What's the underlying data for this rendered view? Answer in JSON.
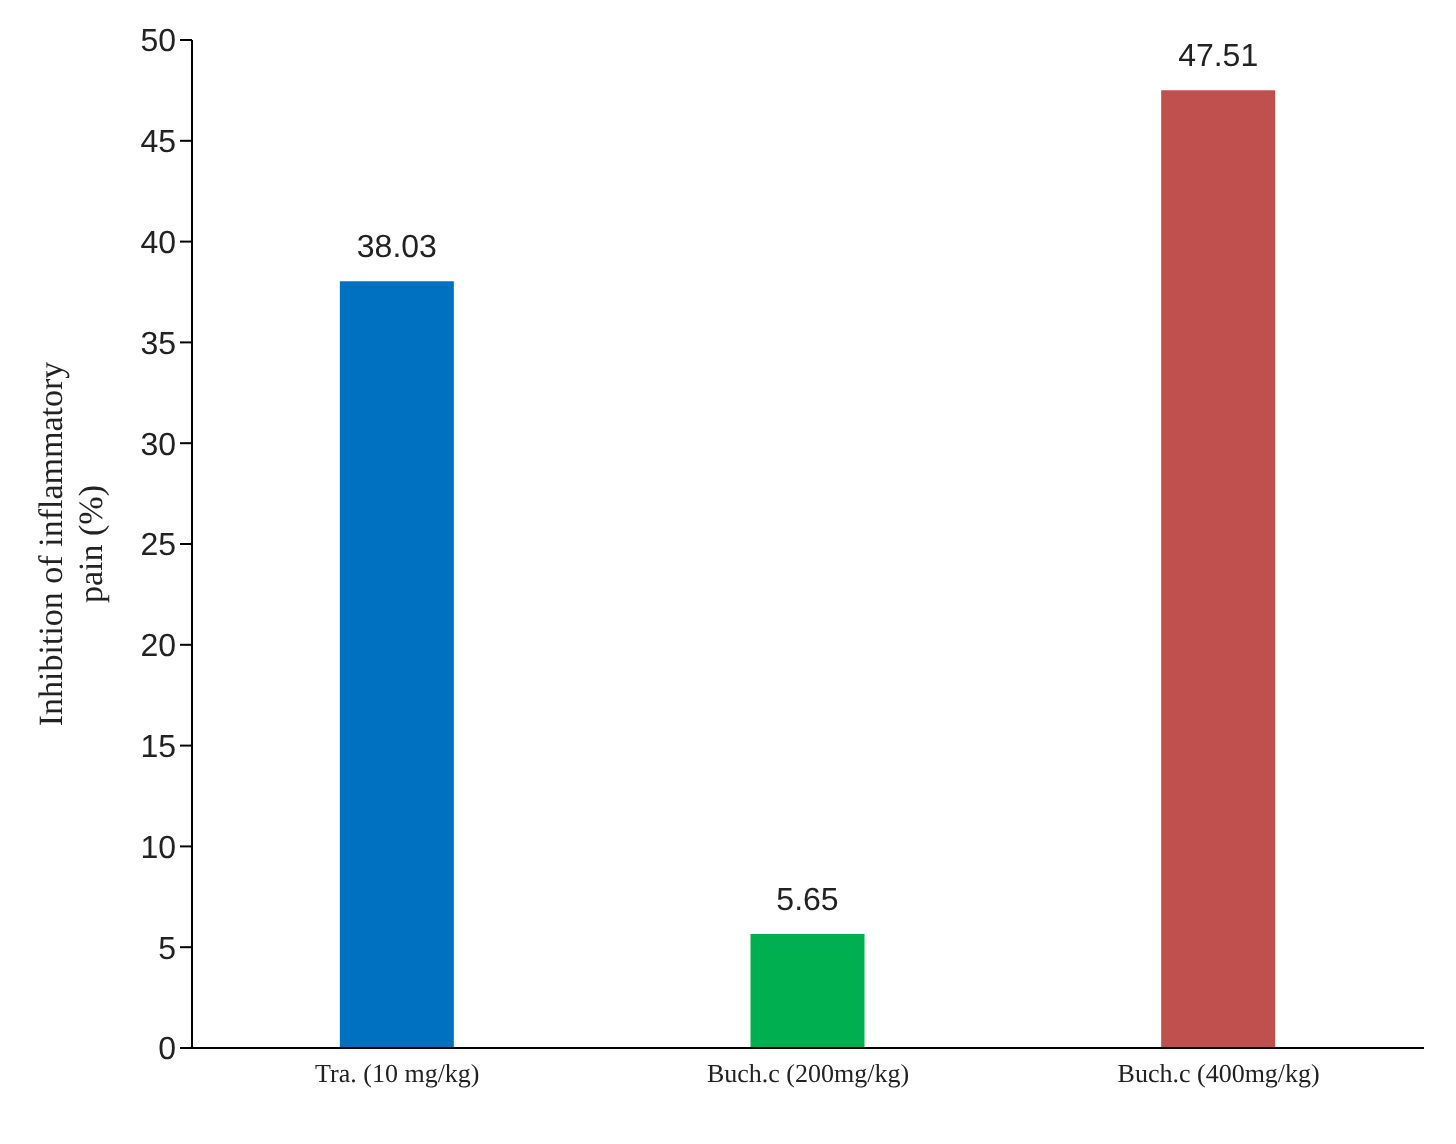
{
  "chart_data": {
    "type": "bar",
    "ylabel": "Inhibition of inflammatory pain (%)",
    "categories": [
      "Tra. (10 mg/kg)",
      "Buch.c (200mg/kg)",
      "Buch.c (400mg/kg)"
    ],
    "values": [
      38.03,
      5.65,
      47.51
    ],
    "colors": [
      "#0070c0",
      "#00b050",
      "#c0504d"
    ],
    "ylim": [
      0,
      50
    ],
    "yticks": [
      0,
      5,
      10,
      15,
      20,
      25,
      30,
      35,
      40,
      45,
      50
    ],
    "data_labels": true,
    "grid": false
  }
}
